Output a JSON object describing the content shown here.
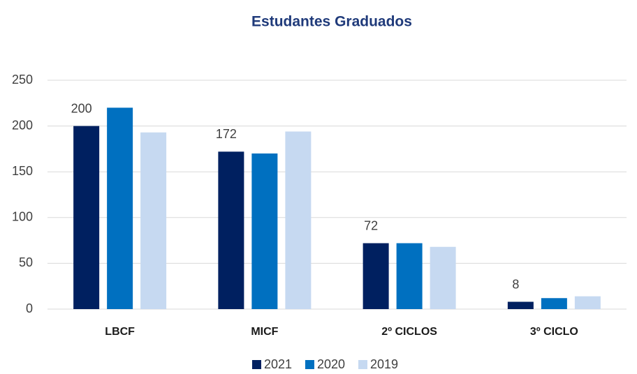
{
  "chart_data": {
    "type": "bar",
    "title": "Estudantes Graduados",
    "categories": [
      "LBCF",
      "MICF",
      "2º CICLOS",
      "3º CICLO"
    ],
    "series": [
      {
        "name": "2021",
        "color": "#002060",
        "values": [
          200,
          172,
          72,
          8
        ],
        "data_labels": true
      },
      {
        "name": "2020",
        "color": "#0070c0",
        "values": [
          220,
          170,
          72,
          12
        ],
        "data_labels": false
      },
      {
        "name": "2019",
        "color": "#c6d9f1",
        "values": [
          193,
          194,
          68,
          14
        ],
        "data_labels": false
      }
    ],
    "ylim": [
      0,
      250
    ],
    "yticks": [
      0,
      50,
      100,
      150,
      200,
      250
    ],
    "grid": true,
    "legend": "bottom"
  }
}
